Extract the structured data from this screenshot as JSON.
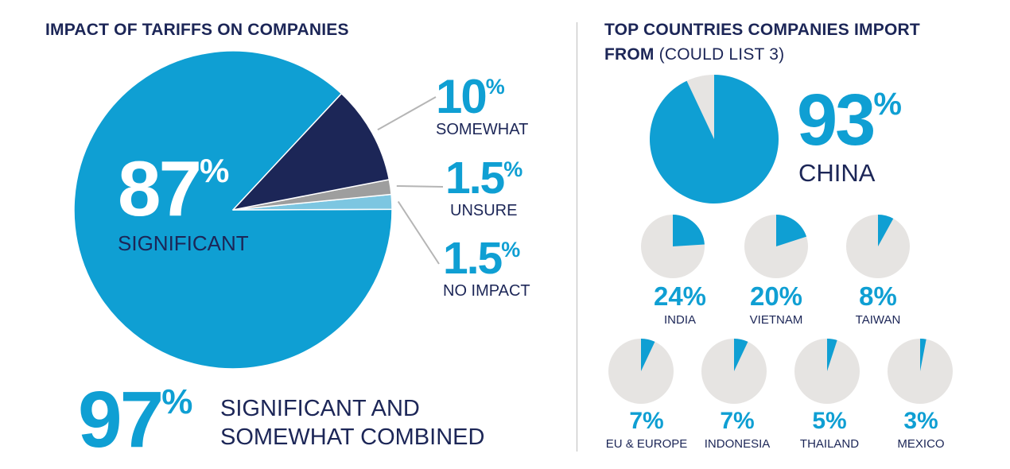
{
  "left": {
    "title": "IMPACT OF TARIFFS ON COMPANIES",
    "main": {
      "value": "87",
      "sign": "%",
      "label": "SIGNIFICANT"
    },
    "callouts": [
      {
        "value": "10",
        "sign": "%",
        "label": "SOMEWHAT"
      },
      {
        "value": "1.5",
        "sign": "%",
        "label": "UNSURE"
      },
      {
        "value": "1.5",
        "sign": "%",
        "label": "NO IMPACT"
      }
    ],
    "combined": {
      "value": "97",
      "sign": "%",
      "line1": "SIGNIFICANT AND",
      "line2": "SOMEWHAT COMBINED"
    }
  },
  "right": {
    "title_bold_line1": "TOP COUNTRIES COMPANIES IMPORT",
    "title_bold_line2": "FROM",
    "title_light": "(COULD LIST 3)",
    "china": {
      "value": "93",
      "sign": "%",
      "label": "CHINA"
    },
    "countries": [
      {
        "value": "24%",
        "label": "INDIA"
      },
      {
        "value": "20%",
        "label": "VIETNAM"
      },
      {
        "value": "8%",
        "label": "TAIWAN"
      },
      {
        "value": "7%",
        "label": "EU & EUROPE"
      },
      {
        "value": "7%",
        "label": "INDONESIA"
      },
      {
        "value": "5%",
        "label": "THAILAND"
      },
      {
        "value": "3%",
        "label": "MEXICO"
      }
    ]
  },
  "colors": {
    "blue": "#0f9fd3",
    "navy": "#1c2657",
    "gray": "#9e9e9e",
    "light_blue": "#7cc6e1",
    "track": "#e6e4e2",
    "leader": "#b5b5b5"
  },
  "chart_data": [
    {
      "type": "pie",
      "title": "IMPACT OF TARIFFS ON COMPANIES",
      "categories": [
        "SIGNIFICANT",
        "SOMEWHAT",
        "UNSURE",
        "NO IMPACT"
      ],
      "values": [
        87,
        10,
        1.5,
        1.5
      ],
      "annotation": "97% SIGNIFICANT AND SOMEWHAT COMBINED"
    },
    {
      "type": "pie",
      "title": "TOP COUNTRIES COMPANIES IMPORT FROM (COULD LIST 3)",
      "categories": [
        "CHINA",
        "INDIA",
        "VIETNAM",
        "TAIWAN",
        "EU & EUROPE",
        "INDONESIA",
        "THAILAND",
        "MEXICO"
      ],
      "values": [
        93,
        24,
        20,
        8,
        7,
        7,
        5,
        3
      ],
      "unit": "%"
    }
  ]
}
